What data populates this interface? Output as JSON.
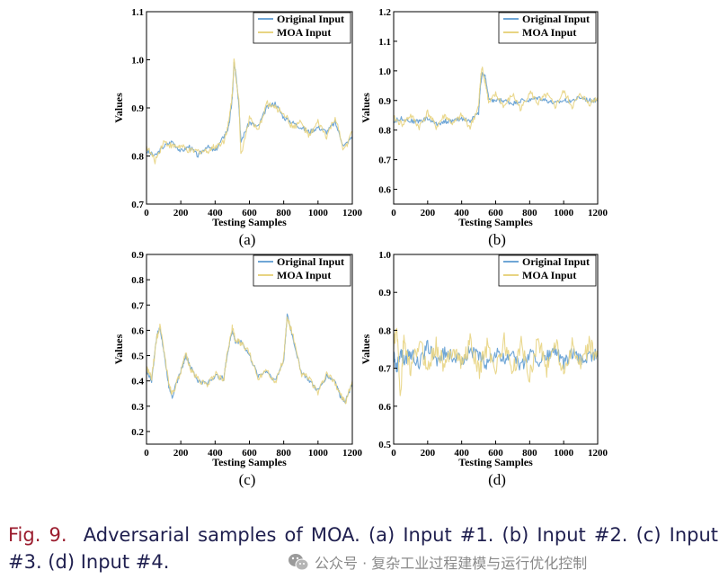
{
  "chart_data": [
    {
      "type": "line",
      "panel_label": "(a)",
      "xlabel": "Testing Samples",
      "ylabel": "Values",
      "xlim": [
        0,
        1200
      ],
      "ylim": [
        0.7,
        1.1
      ],
      "xticks": [
        "0",
        "200",
        "400",
        "600",
        "800",
        "1000",
        "1200"
      ],
      "yticks": [
        "0.7",
        "0.8",
        "0.9",
        "1.0",
        "1.1"
      ],
      "legend": [
        "Original Input",
        "MOA Input"
      ],
      "series": [
        {
          "name": "Original Input",
          "color": "#6fa6d6",
          "x": [
            0,
            50,
            100,
            150,
            200,
            250,
            300,
            350,
            400,
            450,
            480,
            500,
            510,
            520,
            540,
            550,
            600,
            650,
            700,
            750,
            800,
            850,
            900,
            950,
            1000,
            1050,
            1100,
            1150,
            1200
          ],
          "y": [
            0.81,
            0.8,
            0.82,
            0.83,
            0.81,
            0.82,
            0.8,
            0.82,
            0.81,
            0.84,
            0.86,
            0.92,
            0.99,
            0.98,
            0.9,
            0.83,
            0.87,
            0.86,
            0.9,
            0.91,
            0.88,
            0.87,
            0.86,
            0.85,
            0.86,
            0.85,
            0.87,
            0.82,
            0.84
          ]
        },
        {
          "name": "MOA Input",
          "color": "#e8d482",
          "x": [
            0,
            50,
            100,
            150,
            200,
            250,
            300,
            350,
            400,
            450,
            480,
            500,
            510,
            520,
            540,
            550,
            600,
            650,
            700,
            750,
            800,
            850,
            900,
            950,
            1000,
            1050,
            1100,
            1150,
            1200
          ],
          "y": [
            0.82,
            0.79,
            0.83,
            0.82,
            0.82,
            0.81,
            0.81,
            0.81,
            0.82,
            0.83,
            0.87,
            0.93,
            1.0,
            0.97,
            0.91,
            0.8,
            0.88,
            0.85,
            0.91,
            0.9,
            0.89,
            0.86,
            0.87,
            0.84,
            0.87,
            0.84,
            0.88,
            0.81,
            0.85
          ]
        }
      ]
    },
    {
      "type": "line",
      "panel_label": "(b)",
      "xlabel": "Testing Samples",
      "ylabel": "Values",
      "xlim": [
        0,
        1200
      ],
      "ylim": [
        0.55,
        1.2
      ],
      "xticks": [
        "0",
        "200",
        "400",
        "600",
        "800",
        "1000",
        "1200"
      ],
      "yticks": [
        "0.6",
        "0.7",
        "0.8",
        "0.9",
        "1.0",
        "1.1",
        "1.2"
      ],
      "legend": [
        "Original Input",
        "MOA Input"
      ],
      "series": [
        {
          "name": "Original Input",
          "color": "#6fa6d6",
          "x": [
            0,
            50,
            100,
            150,
            200,
            250,
            300,
            350,
            400,
            450,
            500,
            510,
            520,
            540,
            560,
            600,
            650,
            700,
            750,
            800,
            850,
            900,
            950,
            1000,
            1050,
            1100,
            1150,
            1200
          ],
          "y": [
            0.83,
            0.84,
            0.83,
            0.83,
            0.84,
            0.82,
            0.83,
            0.83,
            0.84,
            0.83,
            0.86,
            0.95,
            0.99,
            0.98,
            0.9,
            0.9,
            0.9,
            0.89,
            0.9,
            0.9,
            0.91,
            0.9,
            0.89,
            0.9,
            0.9,
            0.91,
            0.9,
            0.9
          ]
        },
        {
          "name": "MOA Input",
          "color": "#e8d482",
          "x": [
            0,
            50,
            100,
            150,
            200,
            250,
            300,
            350,
            400,
            450,
            500,
            510,
            520,
            540,
            560,
            600,
            650,
            700,
            750,
            800,
            850,
            900,
            950,
            1000,
            1050,
            1100,
            1150,
            1200
          ],
          "y": [
            0.84,
            0.82,
            0.85,
            0.81,
            0.86,
            0.81,
            0.85,
            0.82,
            0.85,
            0.81,
            0.88,
            0.97,
            1.01,
            0.96,
            0.89,
            0.92,
            0.88,
            0.92,
            0.87,
            0.93,
            0.89,
            0.92,
            0.88,
            0.93,
            0.88,
            0.92,
            0.89,
            0.91
          ]
        }
      ]
    },
    {
      "type": "line",
      "panel_label": "(c)",
      "xlabel": "Testing Samples",
      "ylabel": "Values",
      "xlim": [
        0,
        1200
      ],
      "ylim": [
        0.15,
        0.9
      ],
      "xticks": [
        "0",
        "200",
        "400",
        "600",
        "800",
        "1000",
        "1200"
      ],
      "yticks": [
        "0.2",
        "0.3",
        "0.4",
        "0.5",
        "0.6",
        "0.7",
        "0.8",
        "0.9"
      ],
      "legend": [
        "Original Input",
        "MOA Input"
      ],
      "series": [
        {
          "name": "Original Input",
          "color": "#6fa6d6",
          "x": [
            0,
            30,
            60,
            80,
            100,
            130,
            150,
            200,
            230,
            260,
            300,
            350,
            400,
            450,
            470,
            500,
            520,
            550,
            600,
            650,
            700,
            750,
            800,
            820,
            850,
            900,
            950,
            1000,
            1050,
            1100,
            1130,
            1160,
            1200
          ],
          "y": [
            0.44,
            0.4,
            0.58,
            0.61,
            0.52,
            0.38,
            0.34,
            0.44,
            0.5,
            0.45,
            0.4,
            0.39,
            0.42,
            0.41,
            0.5,
            0.6,
            0.55,
            0.56,
            0.5,
            0.42,
            0.44,
            0.4,
            0.48,
            0.66,
            0.58,
            0.44,
            0.4,
            0.36,
            0.42,
            0.4,
            0.34,
            0.32,
            0.39
          ]
        },
        {
          "name": "MOA Input",
          "color": "#e8d482",
          "x": [
            0,
            30,
            60,
            80,
            100,
            130,
            150,
            200,
            230,
            260,
            300,
            350,
            400,
            450,
            470,
            500,
            520,
            550,
            600,
            650,
            700,
            750,
            800,
            820,
            850,
            900,
            950,
            1000,
            1050,
            1100,
            1130,
            1160,
            1200
          ],
          "y": [
            0.45,
            0.41,
            0.57,
            0.62,
            0.53,
            0.39,
            0.35,
            0.43,
            0.51,
            0.44,
            0.41,
            0.38,
            0.43,
            0.4,
            0.51,
            0.61,
            0.56,
            0.55,
            0.51,
            0.41,
            0.45,
            0.39,
            0.49,
            0.65,
            0.59,
            0.43,
            0.41,
            0.35,
            0.43,
            0.39,
            0.35,
            0.31,
            0.4
          ]
        }
      ]
    },
    {
      "type": "line",
      "panel_label": "(d)",
      "xlabel": "Testing Samples",
      "ylabel": "Values",
      "xlim": [
        0,
        1200
      ],
      "ylim": [
        0.5,
        1.0
      ],
      "xticks": [
        "0",
        "200",
        "400",
        "600",
        "800",
        "1000",
        "1200"
      ],
      "yticks": [
        "0.5",
        "0.6",
        "0.7",
        "0.8",
        "0.9",
        "1.0"
      ],
      "legend": [
        "Original Input",
        "MOA Input"
      ],
      "series": [
        {
          "name": "Original Input",
          "color": "#6fa6d6",
          "x": [
            0,
            20,
            40,
            60,
            100,
            150,
            200,
            250,
            300,
            350,
            400,
            450,
            500,
            550,
            600,
            650,
            700,
            750,
            800,
            850,
            900,
            950,
            1000,
            1050,
            1100,
            1150,
            1200
          ],
          "y": [
            0.73,
            0.7,
            0.75,
            0.72,
            0.74,
            0.71,
            0.76,
            0.72,
            0.74,
            0.73,
            0.72,
            0.75,
            0.73,
            0.71,
            0.74,
            0.72,
            0.75,
            0.7,
            0.74,
            0.72,
            0.73,
            0.75,
            0.71,
            0.74,
            0.72,
            0.73,
            0.74
          ]
        },
        {
          "name": "MOA Input",
          "color": "#e8d482",
          "x": [
            0,
            20,
            40,
            60,
            100,
            150,
            200,
            250,
            300,
            350,
            400,
            450,
            500,
            550,
            600,
            650,
            700,
            750,
            800,
            850,
            900,
            950,
            1000,
            1050,
            1100,
            1150,
            1200
          ],
          "y": [
            0.76,
            0.8,
            0.62,
            0.78,
            0.69,
            0.77,
            0.7,
            0.76,
            0.7,
            0.76,
            0.71,
            0.77,
            0.69,
            0.76,
            0.7,
            0.77,
            0.69,
            0.76,
            0.68,
            0.78,
            0.7,
            0.77,
            0.69,
            0.76,
            0.7,
            0.76,
            0.73
          ]
        }
      ]
    }
  ],
  "caption": {
    "figure_label": "Fig. 9.",
    "text": "Adversarial samples of MOA. (a) Input #1. (b) Input #2. (c) Input #3. (d) Input #4."
  },
  "watermark": {
    "text": "公众号 · 复杂工业过程建模与运行优化控制",
    "icon": "wechat-icon"
  }
}
